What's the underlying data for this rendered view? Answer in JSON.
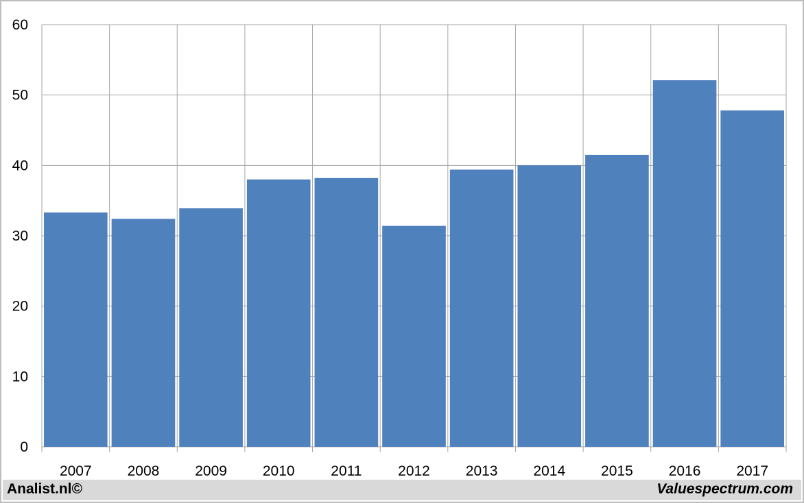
{
  "chart_data": {
    "type": "bar",
    "categories": [
      "2007",
      "2008",
      "2009",
      "2010",
      "2011",
      "2012",
      "2013",
      "2014",
      "2015",
      "2016",
      "2017"
    ],
    "values": [
      33.3,
      32.4,
      33.9,
      38.0,
      38.2,
      31.4,
      39.4,
      40.0,
      41.5,
      52.1,
      47.8
    ],
    "title": "",
    "xlabel": "",
    "ylabel": "",
    "ylim": [
      0,
      60
    ],
    "yticks": [
      "0",
      "10",
      "20",
      "30",
      "40",
      "50",
      "60"
    ],
    "grid": true,
    "legend": "none",
    "bar_color": "#4f81bd",
    "grid_color": "#a6a6a6"
  },
  "footer": {
    "left": "Analist.nl©",
    "right": "Valuespectrum.com"
  }
}
